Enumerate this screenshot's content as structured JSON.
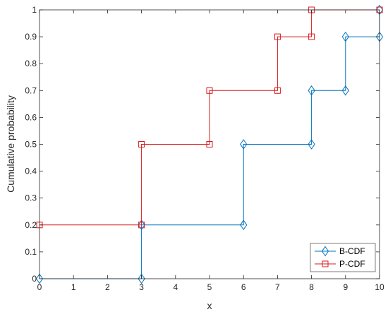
{
  "chart_data": {
    "type": "line",
    "title": "",
    "xlabel": "x",
    "ylabel": "Cumulative probability",
    "xlim": [
      0,
      10
    ],
    "ylim": [
      0,
      1
    ],
    "xticks": [
      0,
      1,
      2,
      3,
      4,
      5,
      6,
      7,
      8,
      9,
      10
    ],
    "yticks": [
      0,
      0.1,
      0.2,
      0.3,
      0.4,
      0.5,
      0.6,
      0.7,
      0.8,
      0.9,
      1
    ],
    "xtick_labels": [
      "0",
      "1",
      "2",
      "3",
      "4",
      "5",
      "6",
      "7",
      "8",
      "9",
      "10"
    ],
    "ytick_labels": [
      "0",
      "0.1",
      "0.2",
      "0.3",
      "0.4",
      "0.5",
      "0.6",
      "0.7",
      "0.8",
      "0.9",
      "1"
    ],
    "grid": false,
    "legend_position": "bottom-right",
    "series": [
      {
        "name": "B-CDF",
        "style": "stairs",
        "marker": "diamond",
        "color": "#0072BD",
        "x": [
          0,
          3,
          6,
          8,
          9,
          10
        ],
        "y": [
          0,
          0.2,
          0.5,
          0.7,
          0.9,
          1.0
        ]
      },
      {
        "name": "P-CDF",
        "style": "stairs",
        "marker": "square",
        "color": "#D9191C",
        "x": [
          0,
          3,
          5,
          7,
          8,
          10
        ],
        "y": [
          0.2,
          0.5,
          0.7,
          0.9,
          1.0,
          1.0
        ]
      }
    ]
  }
}
